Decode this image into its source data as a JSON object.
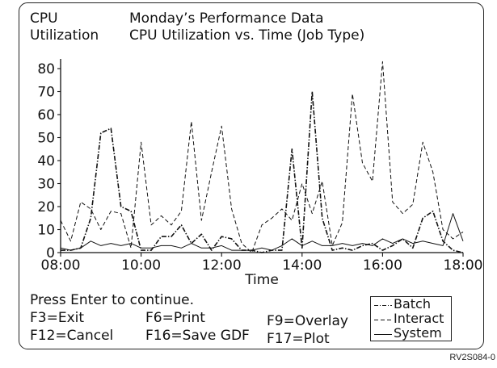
{
  "header": {
    "left_line1": "CPU",
    "left_line2": "Utilization",
    "title_line1": "Monday’s Performance Data",
    "title_line2": "CPU Utilization vs. Time (Job Type)"
  },
  "commands": {
    "prompt": "Press Enter to continue.",
    "f3": "F3=Exit",
    "f6": "F6=Print",
    "f9": "F9=Overlay",
    "f12": "F12=Cancel",
    "f16": "F16=Save GDF",
    "f17": "F17=Plot"
  },
  "credit": "RV2S084-0",
  "colors": {
    "ink": "#111111",
    "background": "#ffffff"
  },
  "chart_data": {
    "type": "line",
    "title": "Monday’s Performance Data",
    "subtitle": "CPU Utilization vs. Time (Job Type)",
    "xlabel": "Time",
    "ylabel": "CPU Utilization",
    "xlim": [
      "08:00",
      "18:00"
    ],
    "ylim": [
      0,
      80
    ],
    "x_ticks": [
      "08:00",
      "10:00",
      "12:00",
      "14:00",
      "16:00",
      "18:00"
    ],
    "y_ticks": [
      0,
      10,
      20,
      30,
      40,
      50,
      60,
      70,
      80
    ],
    "grid": false,
    "legend_position": "bottom-right",
    "x": [
      "08:00",
      "08:15",
      "08:30",
      "08:45",
      "09:00",
      "09:15",
      "09:30",
      "09:45",
      "10:00",
      "10:15",
      "10:30",
      "10:45",
      "11:00",
      "11:15",
      "11:30",
      "11:45",
      "12:00",
      "12:15",
      "12:30",
      "12:45",
      "13:00",
      "13:15",
      "13:30",
      "13:45",
      "14:00",
      "14:15",
      "14:30",
      "14:45",
      "15:00",
      "15:15",
      "15:30",
      "15:45",
      "16:00",
      "16:15",
      "16:30",
      "16:45",
      "17:00",
      "17:15",
      "17:30",
      "17:45",
      "18:00"
    ],
    "series": [
      {
        "name": "Batch",
        "style": "dash-dot",
        "values": [
          1,
          1,
          2,
          15,
          52,
          54,
          20,
          18,
          1,
          1,
          7,
          7,
          12,
          4,
          8,
          1,
          7,
          6,
          1,
          1,
          0,
          1,
          1,
          45,
          2,
          70,
          15,
          1,
          2,
          1,
          3,
          4,
          1,
          3,
          6,
          2,
          15,
          18,
          5,
          1,
          0
        ]
      },
      {
        "name": "Interact",
        "style": "dashed",
        "values": [
          14,
          5,
          22,
          19,
          10,
          18,
          17,
          2,
          48,
          12,
          16,
          12,
          18,
          57,
          14,
          35,
          55,
          19,
          4,
          0,
          12,
          15,
          19,
          14,
          30,
          17,
          31,
          3,
          13,
          69,
          39,
          31,
          83,
          22,
          17,
          21,
          48,
          35,
          10,
          6,
          9
        ]
      },
      {
        "name": "System",
        "style": "solid",
        "values": [
          2,
          1,
          2,
          5,
          3,
          4,
          3,
          4,
          2,
          2,
          3,
          3,
          2,
          4,
          2,
          2,
          3,
          1,
          1,
          1,
          2,
          1,
          3,
          6,
          3,
          5,
          3,
          3,
          4,
          3,
          4,
          3,
          6,
          4,
          6,
          4,
          5,
          4,
          3,
          17,
          5
        ]
      }
    ]
  }
}
